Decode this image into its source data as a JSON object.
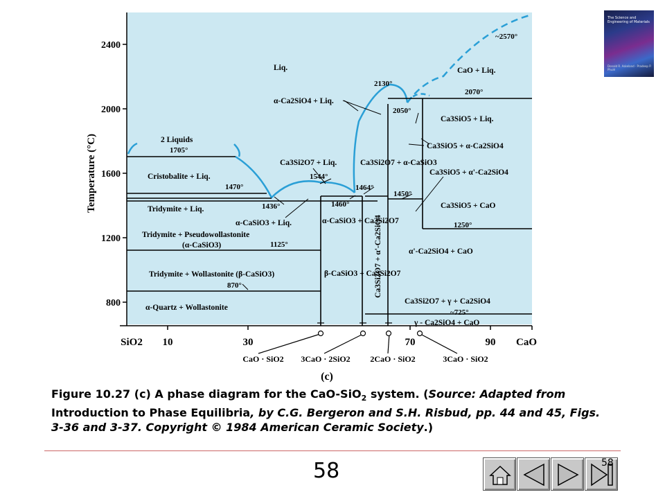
{
  "diagram": {
    "y_axis": {
      "label": "Temperature (°C)",
      "ticks": [
        "2400",
        "2000",
        "1600",
        "1200",
        "800"
      ]
    },
    "x_axis": {
      "ticks": [
        "SiO2",
        "10",
        "30",
        "70",
        "90",
        "CaO"
      ]
    },
    "panel_label": "(c)",
    "compounds": [
      "CaO · SiO2",
      "3CaO · 2SiO2",
      "2CaO · SiO2",
      "3CaO · SiO2"
    ],
    "regions": {
      "liq": "Liq.",
      "cao_liq": "CaO + Liq.",
      "two_liquids": "2 Liquids",
      "alpha_c2s_liq": "α-Ca2SiO4 + Liq.",
      "c3s_liq": "Ca3SiO5 + Liq.",
      "c3s_ac2s": "Ca3SiO5 + α-Ca2SiO4",
      "c3s_apc2s": "Ca3SiO5 + α'-Ca2SiO4",
      "c3s_cao": "Ca3SiO5 + CaO",
      "cristobalite_liq": "Cristobalite + Liq.",
      "c3s2_liq": "Ca3Si2O7 + Liq.",
      "c3s2_acs": "Ca3Si2O7 + α-CaSiO3",
      "tridymite_liq": "Tridymite + Liq.",
      "acs_liq": "α-CaSiO3 + Liq.",
      "acs_c3s2": "α-CaSiO3 + Ca3Si2O7",
      "tridymite_pseudo_1": "Tridymite + Pseudowollastonite",
      "tridymite_pseudo_2": "(α-CaSiO3)",
      "apc2s_cao": "α'-Ca2SiO4 + CaO",
      "vertical_phase": "Ca3Si2O7 + α'-Ca2SiO4",
      "tridymite_wollastonite": "Tridymite + Wollastonite (β-CaSiO3)",
      "bcs_c3s2": "β-CaSiO3 + Ca3Si2O7",
      "c3s2_gamma": "Ca3Si2O7 + γ + Ca2SiO4",
      "gamma_c2s_cao": "γ - Ca2SiO4 + CaO",
      "quartz_wollastonite": "α-Quartz + Wollastonite"
    },
    "temperatures": {
      "t2570": "~2570°",
      "t2130": "2130°",
      "t2070": "2070°",
      "t2050": "2050°",
      "t1705": "1705°",
      "t1544": "1544°",
      "t1470": "1470°",
      "t1464": "1464°",
      "t1460": "1460°",
      "t1450": "1450°",
      "t1436": "1436°",
      "t1250": "1250°",
      "t1125": "1125°",
      "t870": "870°",
      "t725": "~725°"
    }
  },
  "caption": {
    "line1": "Figure 10.27 (c) A phase diagram for the CaO-SiO",
    "line1_sub": "2",
    "line1_end": " system. (",
    "source_label": "Source:",
    "adapted_from": "Adapted from ",
    "book_title": "Introduction to Phase Equilibria",
    "rest": ", by C.G. Bergeron and S.H. Risbud, pp. 44 and 45, Figs. 3-36 and 3-37. Copyright © 1984 American Ceramic Society",
    "end": ".)"
  },
  "page_number": "58",
  "nav_page_number": "58",
  "book_cover": {
    "title": "The Science and Engineering of Materials",
    "author": "Donald R. Askeland · Pradeep P. Phulé"
  },
  "colors": {
    "plot_bg": "#cce8f2",
    "liquidus": "#2a9fd6",
    "lines": "#000000"
  }
}
